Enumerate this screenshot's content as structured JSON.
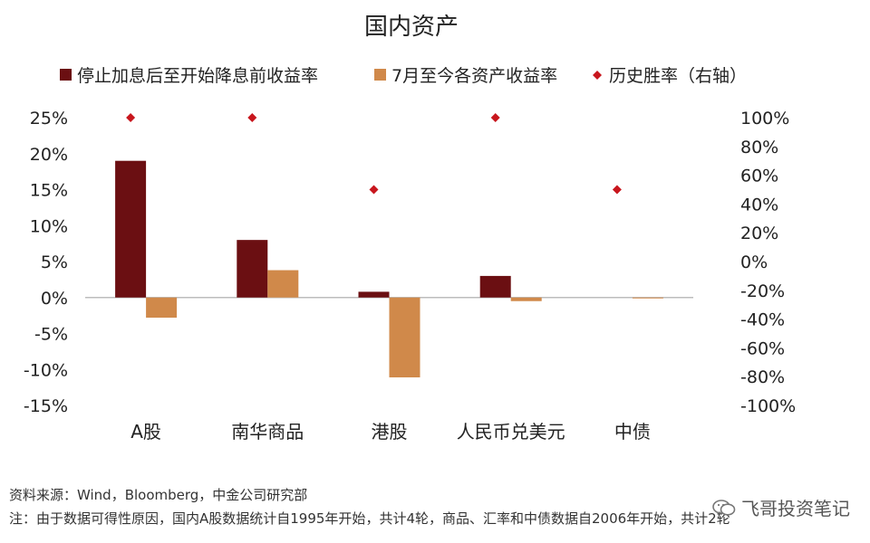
{
  "chart_data": {
    "type": "bar",
    "title": "国内资产",
    "categories": [
      "A股",
      "南华商品",
      "港股",
      "人民币兑美元",
      "中债"
    ],
    "series": [
      {
        "name": "停止加息后至开始降息前收益率",
        "axis": "left",
        "kind": "bar",
        "color": "#6b0f12",
        "values": [
          19.0,
          8.0,
          0.8,
          3.0,
          0.0
        ]
      },
      {
        "name": "7月至今各资产收益率",
        "axis": "left",
        "kind": "bar",
        "color": "#d0894a",
        "values": [
          -2.8,
          3.8,
          -11.1,
          -0.5,
          -0.1
        ]
      },
      {
        "name": "历史胜率（右轴）",
        "axis": "right",
        "kind": "marker",
        "color": "#c8161d",
        "values": [
          100,
          100,
          50,
          100,
          50
        ]
      }
    ],
    "left_axis": {
      "ylim": [
        -15,
        25
      ],
      "ticks": [
        25,
        20,
        15,
        10,
        5,
        0,
        -5,
        -10,
        -15
      ],
      "tick_labels": [
        "25%",
        "20%",
        "15%",
        "10%",
        "5%",
        "0%",
        "-5%",
        "-10%",
        "-15%"
      ]
    },
    "right_axis": {
      "ylim": [
        -100,
        100
      ],
      "ticks": [
        100,
        80,
        60,
        40,
        20,
        0,
        -20,
        -40,
        -60,
        -80,
        -100
      ],
      "tick_labels": [
        "100%",
        "80%",
        "60%",
        "40%",
        "20%",
        "0%",
        "-20%",
        "-40%",
        "-60%",
        "-80%",
        "-100%"
      ]
    },
    "legend_position": "top",
    "grid": false
  },
  "footnotes": {
    "source": "资料来源：Wind，Bloomberg，中金公司研究部",
    "note": "注：由于数据可得性原因，国内A股数据统计自1995年开始，共计4轮，商品、汇率和中债数据自2006年开始，共计2轮"
  },
  "watermark": {
    "text": "飞哥投资笔记",
    "icon": "wechat-icon"
  }
}
